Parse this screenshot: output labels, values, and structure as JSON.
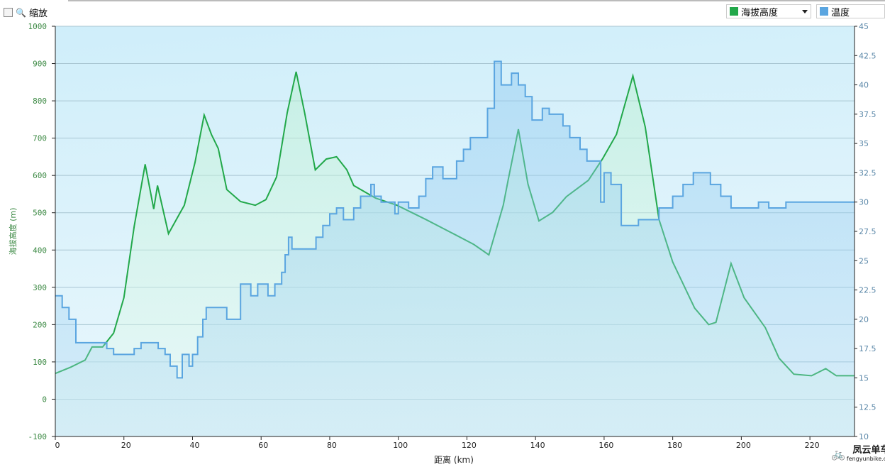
{
  "toolbar": {
    "zoom_label": "缩放",
    "series_select": "海拔高度",
    "series2_label": "温度"
  },
  "colors": {
    "elevation": "#22a84a",
    "temperature": "#5aa5e0"
  },
  "logo": {
    "name": "凤云单车",
    "url": "fengyunbike.com"
  },
  "chart_data": {
    "type": "line",
    "xlabel": "距离 (km)",
    "ylabel": "海拔高度 (m)",
    "xlim": [
      0,
      233
    ],
    "ylim": [
      -100,
      1000
    ],
    "y2lim": [
      10,
      45
    ],
    "xticks": [
      0,
      20,
      40,
      60,
      80,
      100,
      120,
      140,
      160,
      180,
      200,
      220
    ],
    "yticks": [
      -100,
      0,
      100,
      200,
      300,
      400,
      500,
      600,
      700,
      800,
      900,
      1000
    ],
    "y2ticks": [
      "10",
      "12.5",
      "15",
      "17.5",
      "20",
      "22.5",
      "25",
      "27.5",
      "30",
      "32.5",
      "35",
      "37.5",
      "40",
      "42.5",
      "45"
    ],
    "grid": true,
    "series": [
      {
        "name": "海拔高度",
        "axis": "left",
        "points": [
          [
            0,
            69
          ],
          [
            4.5,
            86
          ],
          [
            8.7,
            105
          ],
          [
            10.7,
            140
          ],
          [
            13.8,
            140
          ],
          [
            17,
            177
          ],
          [
            20,
            272
          ],
          [
            23,
            463
          ],
          [
            26.2,
            630
          ],
          [
            28.7,
            510
          ],
          [
            29.8,
            573
          ],
          [
            33,
            444
          ],
          [
            37.6,
            520
          ],
          [
            40.7,
            634
          ],
          [
            43.4,
            762
          ],
          [
            45.5,
            710
          ],
          [
            47.5,
            672
          ],
          [
            50,
            562
          ],
          [
            54,
            530
          ],
          [
            58.3,
            520
          ],
          [
            61.4,
            535
          ],
          [
            64.5,
            596
          ],
          [
            67.6,
            768
          ],
          [
            70.2,
            878
          ],
          [
            72.7,
            768
          ],
          [
            75.8,
            615
          ],
          [
            79,
            644
          ],
          [
            82,
            650
          ],
          [
            85,
            615
          ],
          [
            87,
            573
          ],
          [
            93.4,
            539
          ],
          [
            99.6,
            520
          ],
          [
            108,
            482
          ],
          [
            116,
            444
          ],
          [
            122,
            415
          ],
          [
            126.4,
            387
          ],
          [
            130.6,
            520
          ],
          [
            132,
            587
          ],
          [
            135,
            724
          ],
          [
            137.8,
            577
          ],
          [
            141,
            478
          ],
          [
            145,
            501
          ],
          [
            149,
            543
          ],
          [
            155.4,
            587
          ],
          [
            159.5,
            644
          ],
          [
            163.6,
            710
          ],
          [
            168.4,
            867
          ],
          [
            172,
            730
          ],
          [
            176,
            482
          ],
          [
            180,
            368
          ],
          [
            186.4,
            244
          ],
          [
            190.5,
            200
          ],
          [
            192.6,
            206
          ],
          [
            197,
            364
          ],
          [
            200.8,
            272
          ],
          [
            207,
            192
          ],
          [
            211,
            110
          ],
          [
            215.3,
            67
          ],
          [
            220.5,
            63
          ],
          [
            224.6,
            82
          ],
          [
            227.7,
            63
          ],
          [
            233,
            63
          ]
        ]
      },
      {
        "name": "温度",
        "axis": "right",
        "step": true,
        "points": [
          [
            0,
            22
          ],
          [
            2,
            21
          ],
          [
            4,
            20
          ],
          [
            6,
            18
          ],
          [
            15,
            17.5
          ],
          [
            17,
            17
          ],
          [
            23,
            17.5
          ],
          [
            25,
            18
          ],
          [
            30,
            17.5
          ],
          [
            32,
            17
          ],
          [
            33.5,
            16
          ],
          [
            35.5,
            15
          ],
          [
            37,
            17
          ],
          [
            39,
            16
          ],
          [
            40,
            17
          ],
          [
            41.5,
            18.5
          ],
          [
            43,
            20
          ],
          [
            44,
            21
          ],
          [
            50,
            20
          ],
          [
            54,
            23
          ],
          [
            57,
            22
          ],
          [
            59,
            23
          ],
          [
            62,
            22
          ],
          [
            64,
            23
          ],
          [
            66,
            24
          ],
          [
            67,
            25.5
          ],
          [
            68,
            27
          ],
          [
            69,
            26
          ],
          [
            76,
            27
          ],
          [
            78,
            28
          ],
          [
            80,
            29
          ],
          [
            82,
            29.5
          ],
          [
            84,
            28.5
          ],
          [
            87,
            29.5
          ],
          [
            89,
            30.5
          ],
          [
            92,
            31.5
          ],
          [
            93,
            30.5
          ],
          [
            95,
            30
          ],
          [
            99,
            29
          ],
          [
            100,
            30
          ],
          [
            103,
            29.5
          ],
          [
            106,
            30.5
          ],
          [
            108,
            32
          ],
          [
            110,
            33
          ],
          [
            113,
            32
          ],
          [
            117,
            33.5
          ],
          [
            119,
            34.5
          ],
          [
            121,
            35.5
          ],
          [
            126,
            38
          ],
          [
            128,
            42
          ],
          [
            130,
            40
          ],
          [
            133,
            41
          ],
          [
            135,
            40
          ],
          [
            137,
            39
          ],
          [
            139,
            37
          ],
          [
            142,
            38
          ],
          [
            144,
            37.5
          ],
          [
            148,
            36.5
          ],
          [
            150,
            35.5
          ],
          [
            153,
            34.5
          ],
          [
            155,
            33.5
          ],
          [
            159,
            30
          ],
          [
            160,
            32.5
          ],
          [
            162,
            31.5
          ],
          [
            165,
            28
          ],
          [
            170,
            28.5
          ],
          [
            176,
            29.5
          ],
          [
            180,
            30.5
          ],
          [
            183,
            31.5
          ],
          [
            186,
            32.5
          ],
          [
            191,
            31.5
          ],
          [
            194,
            30.5
          ],
          [
            197,
            29.5
          ],
          [
            205,
            30
          ],
          [
            208,
            29.5
          ],
          [
            213,
            30
          ],
          [
            233,
            30
          ]
        ]
      }
    ]
  }
}
